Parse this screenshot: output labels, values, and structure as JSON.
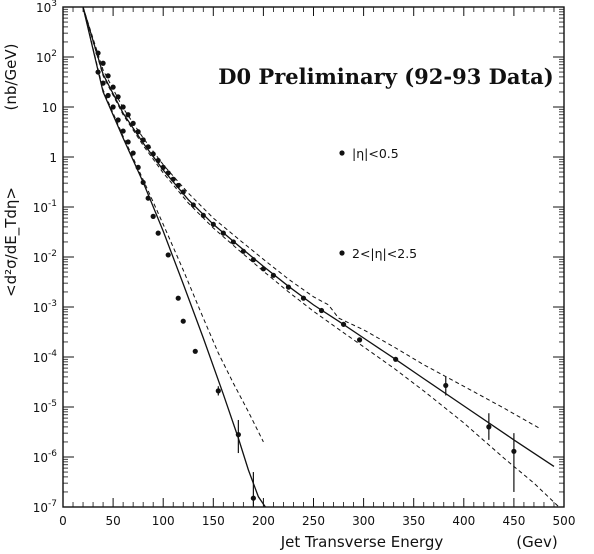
{
  "chart_data": {
    "type": "scatter",
    "title": "D0 Preliminary (92-93 Data)",
    "xlabel": "Jet Transverse Energy",
    "xunit": "(Gev)",
    "ylabel": "<d²σ/dE_Tdη>",
    "yunit": "(nb/GeV)",
    "xlim": [
      0,
      500
    ],
    "ylim": [
      1e-07,
      1000
    ],
    "yscale": "log",
    "xticks": [
      0,
      50,
      100,
      150,
      200,
      250,
      300,
      350,
      400,
      450,
      500
    ],
    "xtick_labels": [
      "0",
      "50",
      "100",
      "150",
      "200",
      "250",
      "300",
      "350",
      "400",
      "450",
      "500"
    ],
    "ytick_labels": [
      {
        "base": "10",
        "exp": "-7",
        "value": 1e-07
      },
      {
        "base": "10",
        "exp": "-6",
        "value": 1e-06
      },
      {
        "base": "10",
        "exp": "-5",
        "value": 1e-05
      },
      {
        "base": "10",
        "exp": "-4",
        "value": 0.0001
      },
      {
        "base": "10",
        "exp": "-3",
        "value": 0.001
      },
      {
        "base": "10",
        "exp": "-2",
        "value": 0.01
      },
      {
        "base": "10",
        "exp": "-1",
        "value": 0.1
      },
      {
        "base": "1",
        "exp": "",
        "value": 1
      },
      {
        "base": "10",
        "exp": "",
        "value": 10
      },
      {
        "base": "10",
        "exp": "2",
        "value": 100
      },
      {
        "base": "10",
        "exp": "3",
        "value": 1000
      }
    ],
    "legend": [
      "|η|<0.5",
      "2<|η|<2.5"
    ],
    "legend_position": "right-middle",
    "series": [
      {
        "name": "|η|<0.5",
        "points": [
          {
            "x": 35,
            "y": 120
          },
          {
            "x": 40,
            "y": 75
          },
          {
            "x": 45,
            "y": 42
          },
          {
            "x": 50,
            "y": 25
          },
          {
            "x": 55,
            "y": 16
          },
          {
            "x": 60,
            "y": 10
          },
          {
            "x": 65,
            "y": 7
          },
          {
            "x": 70,
            "y": 4.7
          },
          {
            "x": 75,
            "y": 3.2
          },
          {
            "x": 80,
            "y": 2.2
          },
          {
            "x": 85,
            "y": 1.6
          },
          {
            "x": 90,
            "y": 1.15
          },
          {
            "x": 95,
            "y": 0.85
          },
          {
            "x": 100,
            "y": 0.62
          },
          {
            "x": 105,
            "y": 0.48
          },
          {
            "x": 110,
            "y": 0.36
          },
          {
            "x": 115,
            "y": 0.27
          },
          {
            "x": 120,
            "y": 0.2
          },
          {
            "x": 130,
            "y": 0.11
          },
          {
            "x": 140,
            "y": 0.068
          },
          {
            "x": 150,
            "y": 0.045
          },
          {
            "x": 160,
            "y": 0.03
          },
          {
            "x": 170,
            "y": 0.02
          },
          {
            "x": 180,
            "y": 0.013
          },
          {
            "x": 190,
            "y": 0.0088
          },
          {
            "x": 200,
            "y": 0.0058
          },
          {
            "x": 210,
            "y": 0.0043
          },
          {
            "x": 225,
            "y": 0.0025
          },
          {
            "x": 240,
            "y": 0.0015
          },
          {
            "x": 258,
            "y": 0.00085
          },
          {
            "x": 280,
            "y": 0.00045
          },
          {
            "x": 296,
            "y": 0.00022
          },
          {
            "x": 332,
            "y": 9e-05
          },
          {
            "x": 382,
            "y": 2.7e-05,
            "err": [
              1.7e-05,
              4e-05
            ]
          },
          {
            "x": 425,
            "y": 4e-06,
            "err": [
              2.2e-06,
              7.5e-06
            ]
          },
          {
            "x": 450,
            "y": 1.3e-06,
            "err": [
              2e-07,
              3e-06
            ]
          }
        ]
      },
      {
        "name": "2<|η|<2.5",
        "points": [
          {
            "x": 35,
            "y": 50
          },
          {
            "x": 40,
            "y": 30
          },
          {
            "x": 45,
            "y": 17
          },
          {
            "x": 50,
            "y": 10
          },
          {
            "x": 55,
            "y": 5.5
          },
          {
            "x": 60,
            "y": 3.3
          },
          {
            "x": 65,
            "y": 2
          },
          {
            "x": 70,
            "y": 1.2
          },
          {
            "x": 75,
            "y": 0.62
          },
          {
            "x": 80,
            "y": 0.31
          },
          {
            "x": 85,
            "y": 0.15
          },
          {
            "x": 90,
            "y": 0.065
          },
          {
            "x": 95,
            "y": 0.03
          },
          {
            "x": 105,
            "y": 0.011
          },
          {
            "x": 115,
            "y": 0.0015
          },
          {
            "x": 120,
            "y": 0.00052
          },
          {
            "x": 132,
            "y": 0.00013
          },
          {
            "x": 155,
            "y": 2.1e-05,
            "err": [
              1.7e-05,
              2.6e-05
            ]
          },
          {
            "x": 175,
            "y": 2.8e-06,
            "err": [
              1.2e-06,
              5.5e-06
            ]
          },
          {
            "x": 190,
            "y": 1.5e-07,
            "err": [
              1e-07,
              5e-07
            ]
          }
        ]
      }
    ],
    "curves": [
      {
        "kind": "solid",
        "points": [
          [
            20,
            1000
          ],
          [
            40,
            45
          ],
          [
            60,
            7.5
          ],
          [
            80,
            1.9
          ],
          [
            100,
            0.55
          ],
          [
            125,
            0.14
          ],
          [
            150,
            0.045
          ],
          [
            175,
            0.017
          ],
          [
            200,
            0.0065
          ],
          [
            225,
            0.0026
          ],
          [
            250,
            0.0011
          ],
          [
            275,
            0.00052
          ],
          [
            300,
            0.00024
          ],
          [
            330,
            9.5e-05
          ],
          [
            360,
            3.7e-05
          ],
          [
            400,
            1.05e-05
          ],
          [
            450,
            2.2e-06
          ],
          [
            490,
            6.5e-07
          ]
        ]
      },
      {
        "kind": "dashed",
        "points": [
          [
            20,
            1000
          ],
          [
            40,
            55
          ],
          [
            60,
            9.5
          ],
          [
            80,
            2.4
          ],
          [
            100,
            0.7
          ],
          [
            125,
            0.19
          ],
          [
            150,
            0.06
          ],
          [
            175,
            0.023
          ],
          [
            200,
            0.009
          ],
          [
            225,
            0.0036
          ],
          [
            250,
            0.0016
          ],
          [
            265,
            0.0011
          ],
          [
            275,
            0.0006
          ],
          [
            300,
            0.00035
          ],
          [
            330,
            0.00016
          ],
          [
            360,
            7e-05
          ],
          [
            400,
            2.6e-05
          ],
          [
            440,
            9.5e-06
          ],
          [
            475,
            3.8e-06
          ]
        ]
      },
      {
        "kind": "dashed",
        "points": [
          [
            20,
            1000
          ],
          [
            40,
            42
          ],
          [
            60,
            7
          ],
          [
            80,
            1.7
          ],
          [
            100,
            0.48
          ],
          [
            125,
            0.12
          ],
          [
            150,
            0.038
          ],
          [
            175,
            0.014
          ],
          [
            200,
            0.0052
          ],
          [
            225,
            0.002
          ],
          [
            250,
            0.00082
          ],
          [
            275,
            0.00036
          ],
          [
            300,
            0.00016
          ],
          [
            330,
            6e-05
          ],
          [
            360,
            2.1e-05
          ],
          [
            400,
            4.8e-06
          ],
          [
            440,
            9.5e-07
          ],
          [
            470,
            3e-07
          ],
          [
            495,
            1e-07
          ]
        ]
      },
      {
        "kind": "solid",
        "points": [
          [
            20,
            1000
          ],
          [
            40,
            20
          ],
          [
            60,
            2.4
          ],
          [
            80,
            0.31
          ],
          [
            100,
            0.033
          ],
          [
            120,
            0.0029
          ],
          [
            140,
            0.00024
          ],
          [
            160,
            1.8e-05
          ],
          [
            175,
            2.4e-06
          ],
          [
            185,
            5.5e-07
          ],
          [
            195,
            1.6e-07
          ],
          [
            202,
            1e-07
          ]
        ]
      },
      {
        "kind": "dashed",
        "points": [
          [
            20,
            1000
          ],
          [
            40,
            22
          ],
          [
            60,
            2.6
          ],
          [
            80,
            0.35
          ],
          [
            100,
            0.045
          ],
          [
            120,
            0.0055
          ],
          [
            140,
            0.0006
          ],
          [
            155,
            0.00012
          ],
          [
            170,
            3e-05
          ],
          [
            185,
            8e-06
          ],
          [
            200,
            2e-06
          ]
        ]
      }
    ]
  }
}
